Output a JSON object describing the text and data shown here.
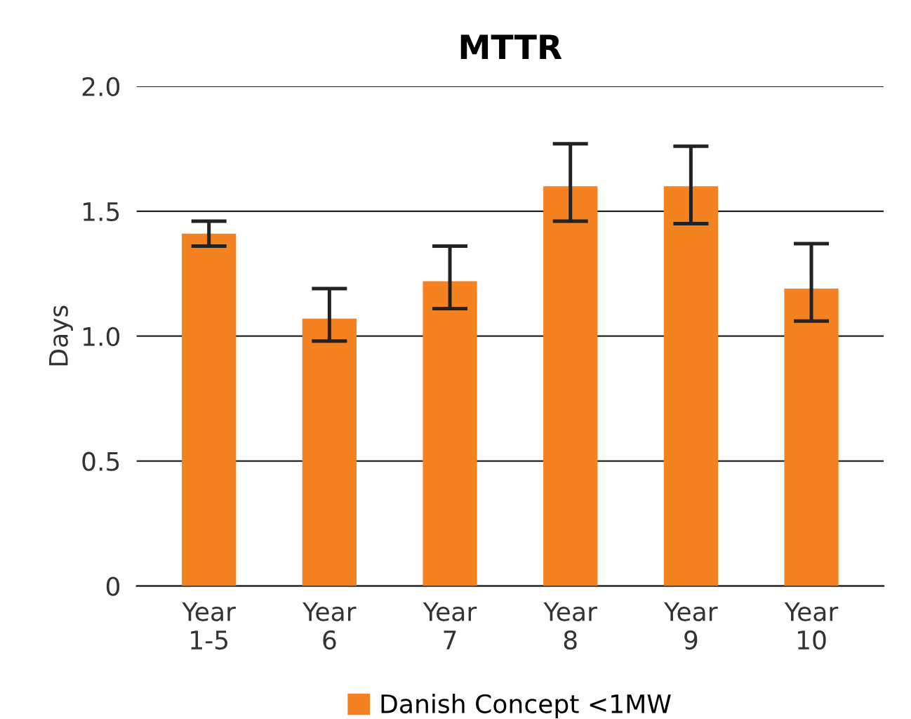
{
  "chart_data": {
    "type": "bar",
    "title": "MTTR",
    "ylabel": "Days",
    "categories": [
      "Year\n1-5",
      "Year\n6",
      "Year\n7",
      "Year\n8",
      "Year\n9",
      "Year\n10"
    ],
    "series": [
      {
        "name": "Danish Concept <1MW",
        "color": "#f58220",
        "values": [
          1.41,
          1.07,
          1.22,
          1.6,
          1.6,
          1.19
        ],
        "errors": [
          [
            1.36,
            1.46
          ],
          [
            0.98,
            1.19
          ],
          [
            1.11,
            1.36
          ],
          [
            1.46,
            1.77
          ],
          [
            1.45,
            1.76
          ],
          [
            1.06,
            1.37
          ]
        ]
      }
    ],
    "ylim": [
      0,
      2
    ],
    "yticks": [
      0,
      {
        "value": 0.5,
        "label": "0.5"
      },
      {
        "value": 1,
        "label": "1.0"
      },
      {
        "value": 1.5,
        "label": "1.5"
      },
      {
        "value": 2,
        "label": "2.0"
      }
    ],
    "grid": "y",
    "legend": "bottom"
  }
}
